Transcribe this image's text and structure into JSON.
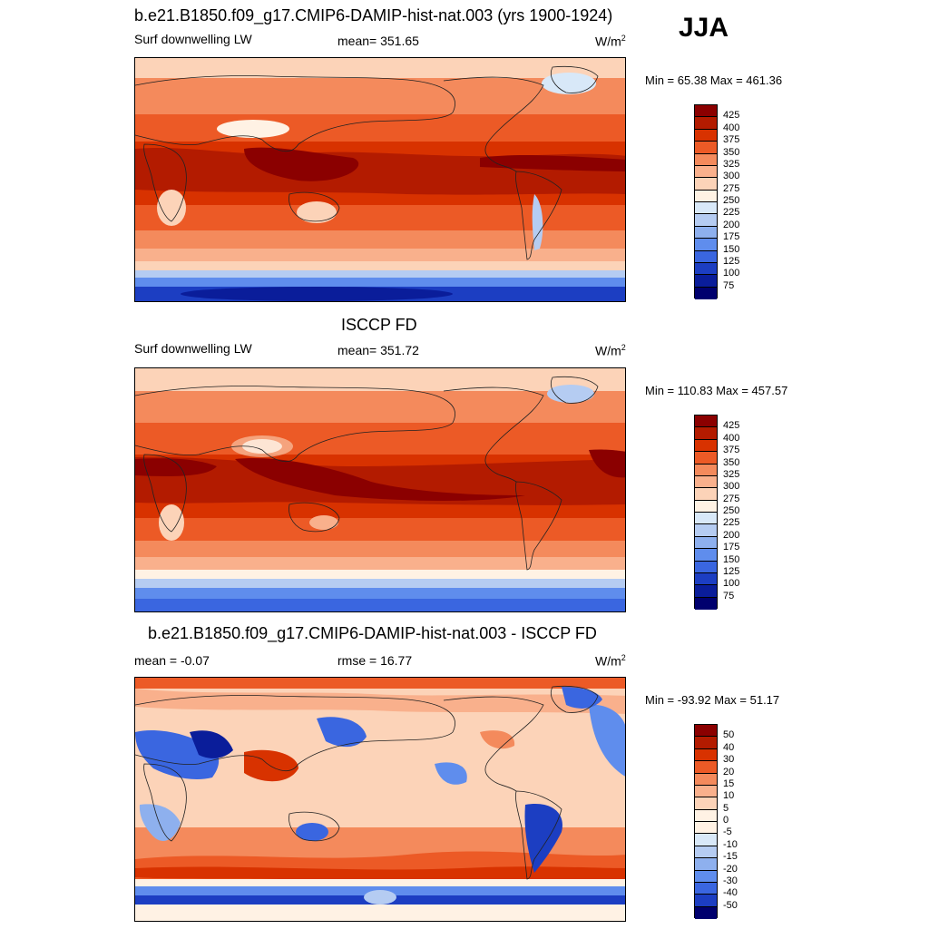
{
  "season": "JJA",
  "panels": [
    {
      "title": "b.e21.B1850.f09_g17.CMIP6-DAMIP-hist-nat.003 (yrs 1900-1924)",
      "left_label": "Surf downwelling LW",
      "center_label": "mean= 351.65",
      "units": "W/m",
      "units_sup": "2",
      "minmax": "Min =  65.38 Max = 461.36",
      "levels": [
        "425",
        "400",
        "375",
        "350",
        "325",
        "300",
        "275",
        "250",
        "225",
        "200",
        "175",
        "150",
        "125",
        "100",
        "75"
      ],
      "colors": [
        "#8b0000",
        "#b31b00",
        "#d83200",
        "#ec5a26",
        "#f48a5c",
        "#f9b08c",
        "#fcd3b8",
        "#fff2e4",
        "#d8e8f8",
        "#b5ccf2",
        "#8eb0ee",
        "#5f8ded",
        "#3a66e0",
        "#1c3ec2",
        "#0a1d9a",
        "#00006e"
      ]
    },
    {
      "title": "ISCCP FD",
      "left_label": "Surf downwelling LW",
      "center_label": "mean= 351.72",
      "units": "W/m",
      "units_sup": "2",
      "minmax": "Min = 110.83 Max = 457.57",
      "levels": [
        "425",
        "400",
        "375",
        "350",
        "325",
        "300",
        "275",
        "250",
        "225",
        "200",
        "175",
        "150",
        "125",
        "100",
        "75"
      ],
      "colors": [
        "#8b0000",
        "#b31b00",
        "#d83200",
        "#ec5a26",
        "#f48a5c",
        "#f9b08c",
        "#fcd3b8",
        "#fff2e4",
        "#d8e8f8",
        "#b5ccf2",
        "#8eb0ee",
        "#5f8ded",
        "#3a66e0",
        "#1c3ec2",
        "#0a1d9a",
        "#00006e"
      ]
    },
    {
      "title": "b.e21.B1850.f09_g17.CMIP6-DAMIP-hist-nat.003 - ISCCP FD",
      "left_label": "mean =  -0.07",
      "center_label": "rmse =  16.77",
      "units": "W/m",
      "units_sup": "2",
      "minmax": "Min = -93.92 Max =  51.17",
      "levels": [
        "50",
        "40",
        "30",
        "20",
        "15",
        "10",
        "5",
        "0",
        "-5",
        "-10",
        "-15",
        "-20",
        "-30",
        "-40",
        "-50"
      ],
      "colors": [
        "#8b0000",
        "#b31b00",
        "#d83200",
        "#ec5a26",
        "#f48a5c",
        "#f9b08c",
        "#fcd3b8",
        "#fff2e4",
        "#fff2e4",
        "#d8e8f8",
        "#b5ccf2",
        "#8eb0ee",
        "#5f8ded",
        "#3a66e0",
        "#1c3ec2",
        "#00006e"
      ]
    }
  ]
}
